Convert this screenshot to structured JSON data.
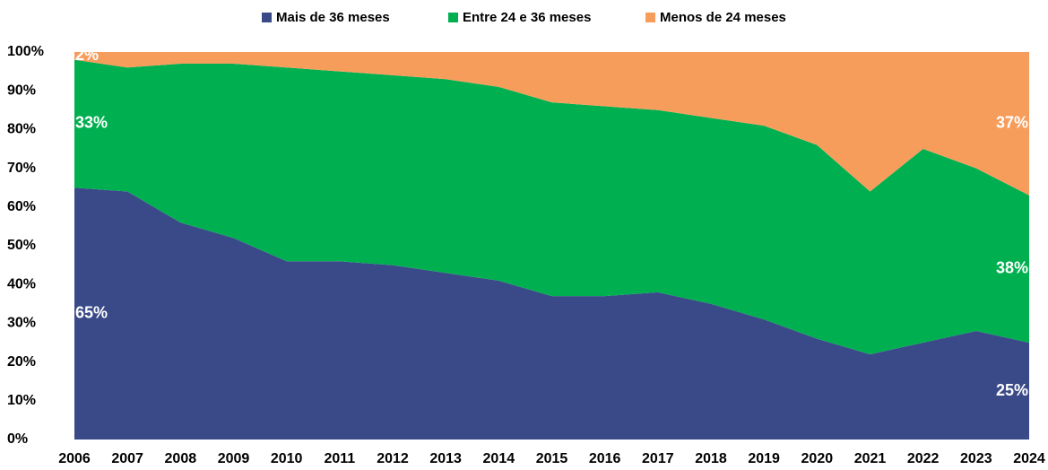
{
  "chart_data": {
    "type": "stacked-area",
    "categories": [
      "2006",
      "2007",
      "2008",
      "2009",
      "2010",
      "2011",
      "2012",
      "2013",
      "2014",
      "2015",
      "2016",
      "2017",
      "2018",
      "2019",
      "2020",
      "2021",
      "2022",
      "2023",
      "2024"
    ],
    "series": [
      {
        "name": "Mais de 36 meses",
        "color": "#3a4a88",
        "values": [
          65,
          64,
          56,
          52,
          46,
          46,
          45,
          43,
          41,
          37,
          37,
          38,
          35,
          31,
          26,
          22,
          25,
          28,
          25
        ],
        "value_labels": [
          "65%",
          null,
          null,
          null,
          null,
          null,
          null,
          null,
          null,
          null,
          null,
          null,
          null,
          null,
          null,
          null,
          null,
          null,
          "25%"
        ]
      },
      {
        "name": "Entre 24 e 36 meses",
        "color": "#00b050",
        "values": [
          33,
          32,
          41,
          45,
          50,
          49,
          49,
          50,
          50,
          50,
          49,
          47,
          48,
          50,
          50,
          42,
          50,
          42,
          38
        ],
        "value_labels": [
          "33%",
          null,
          null,
          null,
          null,
          null,
          null,
          null,
          null,
          null,
          null,
          null,
          null,
          null,
          null,
          null,
          null,
          null,
          "38%"
        ]
      },
      {
        "name": "Menos de 24 meses",
        "color": "#f79d5c",
        "values": [
          2,
          4,
          3,
          3,
          4,
          5,
          6,
          7,
          9,
          13,
          14,
          15,
          17,
          19,
          24,
          36,
          25,
          30,
          37
        ],
        "value_labels": [
          "2%",
          null,
          null,
          null,
          null,
          null,
          null,
          null,
          null,
          null,
          null,
          null,
          null,
          null,
          null,
          null,
          null,
          null,
          "37%"
        ]
      }
    ],
    "ylim": [
      0,
      100
    ],
    "yticks": [
      {
        "value": 0,
        "label": "0%"
      },
      {
        "value": 10,
        "label": "10%"
      },
      {
        "value": 20,
        "label": "20%"
      },
      {
        "value": 30,
        "label": "30%"
      },
      {
        "value": 40,
        "label": "40%"
      },
      {
        "value": 50,
        "label": "50%"
      },
      {
        "value": 60,
        "label": "60%"
      },
      {
        "value": 70,
        "label": "70%"
      },
      {
        "value": 80,
        "label": "80%"
      },
      {
        "value": 90,
        "label": "90%"
      },
      {
        "value": 100,
        "label": "100%"
      }
    ],
    "legend": "top"
  }
}
